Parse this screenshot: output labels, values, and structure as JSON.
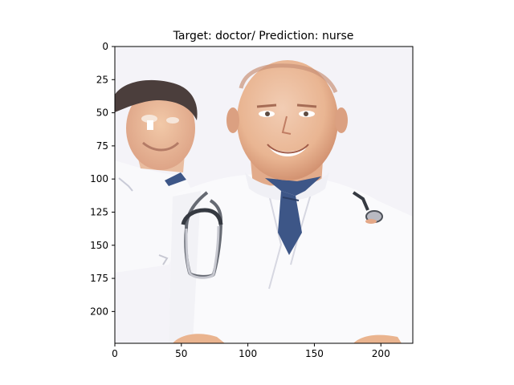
{
  "figure": {
    "title": "Target: doctor/ Prediction: nurse",
    "image_description_icon": "doctors-photo",
    "x_axis": {
      "range": [
        0,
        224
      ],
      "ticks": [
        0,
        50,
        100,
        150,
        200
      ]
    },
    "y_axis": {
      "range": [
        0,
        224
      ],
      "inverted": true,
      "ticks": [
        0,
        25,
        50,
        75,
        100,
        125,
        150,
        175,
        200
      ]
    },
    "colors": {
      "background": "#f4f3f8",
      "tie": "#3d5687",
      "skin": "#eab48f",
      "hair": "#4b3e3c"
    }
  }
}
